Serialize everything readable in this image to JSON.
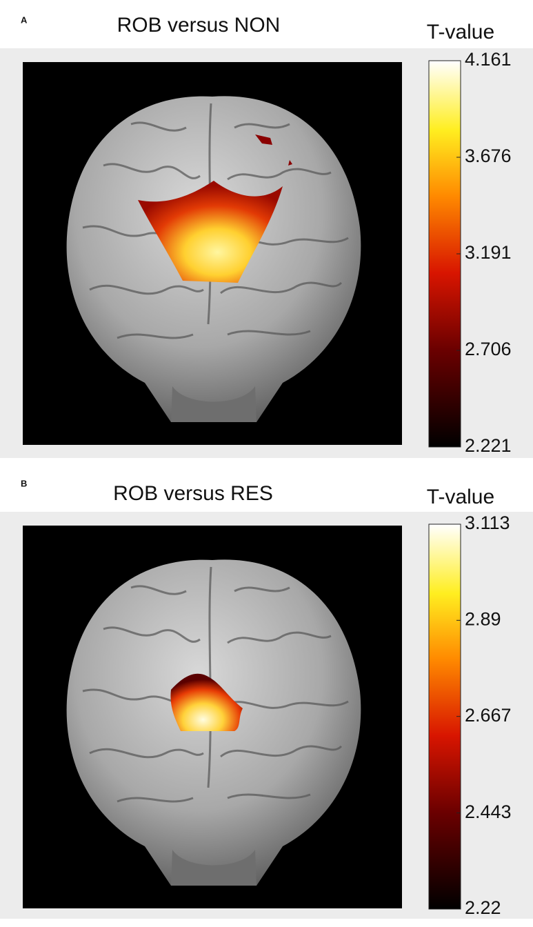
{
  "panels": [
    {
      "label": "A",
      "title": "ROB versus NON",
      "colorbar": {
        "title": "T-value",
        "ticks": [
          2.221,
          2.706,
          3.191,
          3.676,
          4.161
        ]
      }
    },
    {
      "label": "B",
      "title": "ROB versus RES",
      "colorbar": {
        "title": "T-value",
        "ticks": [
          2.22,
          2.443,
          2.667,
          2.89,
          3.113
        ]
      }
    }
  ]
}
